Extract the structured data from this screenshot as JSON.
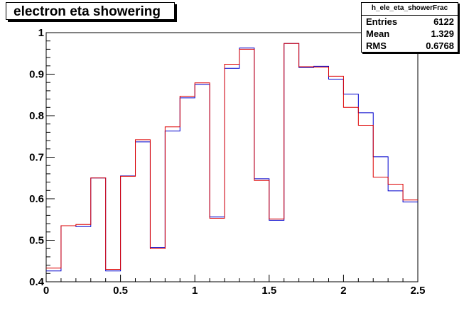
{
  "chart_data": {
    "type": "step",
    "title": "electron eta showering",
    "xlim": [
      0,
      2.5
    ],
    "ylim": [
      0.4,
      1.0
    ],
    "x_ticks": [
      "0",
      "0.5",
      "1",
      "1.5",
      "2",
      "2.5"
    ],
    "y_ticks": [
      "0.4",
      "0.5",
      "0.6",
      "0.7",
      "0.8",
      "0.9",
      "1"
    ],
    "bin_edges": [
      0,
      0.1,
      0.2,
      0.3,
      0.4,
      0.5,
      0.6,
      0.7,
      0.8,
      0.9,
      1.0,
      1.1,
      1.2,
      1.3,
      1.4,
      1.5,
      1.6,
      1.7,
      1.8,
      1.9,
      2.0,
      2.1,
      2.2,
      2.3,
      2.4,
      2.5
    ],
    "series": [
      {
        "color": "#0000cc",
        "values": [
          0.426,
          0.535,
          0.533,
          0.65,
          0.426,
          0.655,
          0.737,
          0.483,
          0.763,
          0.843,
          0.875,
          0.556,
          0.914,
          0.963,
          0.648,
          0.548,
          0.974,
          0.916,
          0.919,
          0.888,
          0.852,
          0.807,
          0.701,
          0.619,
          0.592
        ]
      },
      {
        "color": "#dd0000",
        "values": [
          0.433,
          0.535,
          0.538,
          0.65,
          0.43,
          0.654,
          0.742,
          0.48,
          0.773,
          0.847,
          0.879,
          0.553,
          0.924,
          0.96,
          0.644,
          0.551,
          0.974,
          0.918,
          0.917,
          0.895,
          0.82,
          0.777,
          0.652,
          0.635,
          0.597
        ]
      }
    ]
  },
  "stats": {
    "name": "h_ele_eta_showerFrac",
    "entries_label": "Entries",
    "entries_value": "6122",
    "mean_label": "Mean",
    "mean_value": "1.329",
    "rms_label": "RMS",
    "rms_value": "0.6768"
  },
  "colors": {
    "frame": "#000000",
    "background": "#ffffff"
  }
}
